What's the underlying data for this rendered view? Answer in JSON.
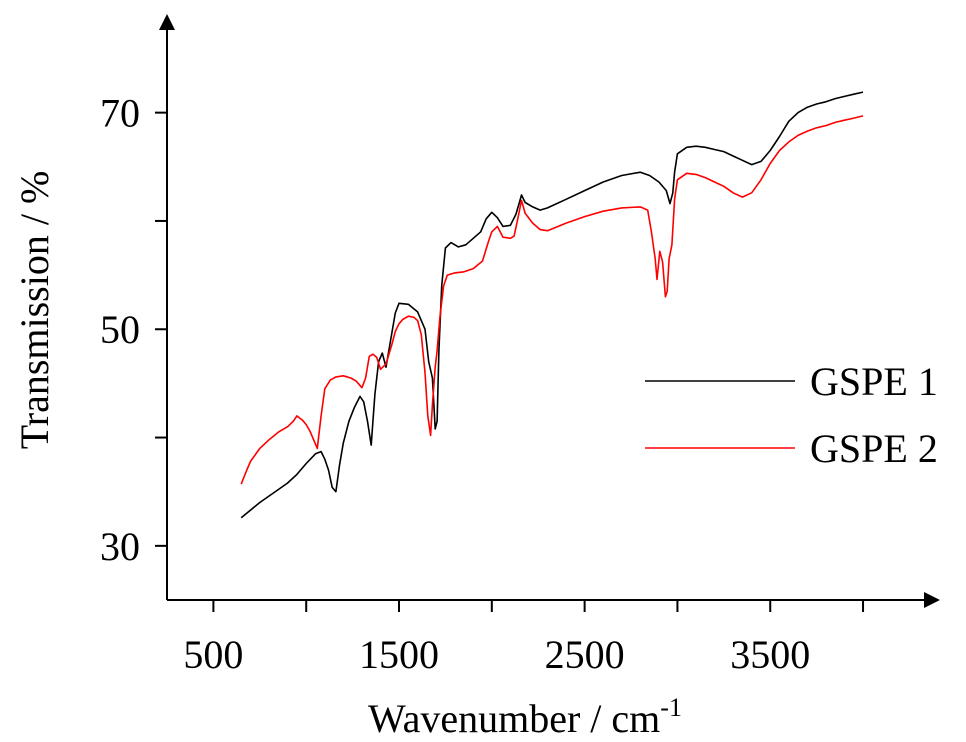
{
  "chart_data": {
    "type": "line",
    "title": "",
    "xlabel": "Wavenumber / cm",
    "xlabel_superscript": "-1",
    "ylabel": "Transmission / %",
    "xlim": [
      250,
      4350
    ],
    "ylim": [
      25,
      78
    ],
    "xticks": [
      500,
      1000,
      1500,
      2000,
      2500,
      3000,
      3500,
      4000
    ],
    "xtick_labels": [
      "500",
      "1500",
      "2500",
      "3500"
    ],
    "xtick_label_values": [
      500,
      1500,
      2500,
      3500
    ],
    "yticks": [
      30,
      40,
      50,
      60,
      70
    ],
    "ytick_labels": [
      "30",
      "50",
      "70"
    ],
    "ytick_label_values": [
      30,
      50,
      70
    ],
    "grid": false,
    "legend_position": "right",
    "series": [
      {
        "name": "GSPE 1",
        "color": "#000000",
        "points": [
          [
            650,
            32.6
          ],
          [
            700,
            33.3
          ],
          [
            750,
            34.0
          ],
          [
            800,
            34.6
          ],
          [
            850,
            35.2
          ],
          [
            900,
            35.8
          ],
          [
            950,
            36.6
          ],
          [
            1000,
            37.6
          ],
          [
            1050,
            38.5
          ],
          [
            1080,
            38.7
          ],
          [
            1100,
            38.0
          ],
          [
            1120,
            37.0
          ],
          [
            1140,
            35.4
          ],
          [
            1160,
            35.0
          ],
          [
            1180,
            37.5
          ],
          [
            1200,
            39.5
          ],
          [
            1230,
            41.5
          ],
          [
            1260,
            42.8
          ],
          [
            1290,
            43.8
          ],
          [
            1310,
            43.3
          ],
          [
            1330,
            41.5
          ],
          [
            1350,
            39.3
          ],
          [
            1370,
            44.0
          ],
          [
            1390,
            47.0
          ],
          [
            1410,
            47.8
          ],
          [
            1430,
            46.5
          ],
          [
            1450,
            48.5
          ],
          [
            1480,
            51.5
          ],
          [
            1500,
            52.4
          ],
          [
            1550,
            52.3
          ],
          [
            1600,
            51.6
          ],
          [
            1640,
            50.0
          ],
          [
            1660,
            47.0
          ],
          [
            1680,
            45.5
          ],
          [
            1695,
            40.8
          ],
          [
            1705,
            41.5
          ],
          [
            1715,
            48.0
          ],
          [
            1730,
            54.0
          ],
          [
            1750,
            57.5
          ],
          [
            1780,
            58.0
          ],
          [
            1820,
            57.6
          ],
          [
            1860,
            57.8
          ],
          [
            1900,
            58.4
          ],
          [
            1940,
            59.0
          ],
          [
            1970,
            60.2
          ],
          [
            2000,
            60.8
          ],
          [
            2030,
            60.3
          ],
          [
            2060,
            59.5
          ],
          [
            2100,
            59.6
          ],
          [
            2130,
            60.6
          ],
          [
            2150,
            61.8
          ],
          [
            2160,
            62.4
          ],
          [
            2180,
            61.7
          ],
          [
            2220,
            61.3
          ],
          [
            2260,
            61.0
          ],
          [
            2300,
            61.2
          ],
          [
            2400,
            62.0
          ],
          [
            2500,
            62.8
          ],
          [
            2600,
            63.6
          ],
          [
            2700,
            64.2
          ],
          [
            2800,
            64.5
          ],
          [
            2850,
            64.2
          ],
          [
            2900,
            63.6
          ],
          [
            2940,
            62.8
          ],
          [
            2960,
            61.6
          ],
          [
            2975,
            62.6
          ],
          [
            2985,
            64.5
          ],
          [
            3000,
            66.2
          ],
          [
            3050,
            66.8
          ],
          [
            3100,
            66.9
          ],
          [
            3150,
            66.8
          ],
          [
            3200,
            66.6
          ],
          [
            3250,
            66.4
          ],
          [
            3300,
            66.0
          ],
          [
            3350,
            65.6
          ],
          [
            3400,
            65.2
          ],
          [
            3450,
            65.5
          ],
          [
            3500,
            66.5
          ],
          [
            3550,
            67.8
          ],
          [
            3600,
            69.2
          ],
          [
            3650,
            70.0
          ],
          [
            3700,
            70.5
          ],
          [
            3750,
            70.8
          ],
          [
            3800,
            71.0
          ],
          [
            3850,
            71.3
          ],
          [
            3900,
            71.5
          ],
          [
            3950,
            71.7
          ],
          [
            4000,
            71.9
          ]
        ]
      },
      {
        "name": "GSPE 2",
        "color": "#ff0000",
        "points": [
          [
            650,
            35.7
          ],
          [
            680,
            37.0
          ],
          [
            700,
            37.8
          ],
          [
            750,
            39.0
          ],
          [
            800,
            39.8
          ],
          [
            850,
            40.5
          ],
          [
            900,
            41.0
          ],
          [
            930,
            41.5
          ],
          [
            950,
            42.0
          ],
          [
            980,
            41.6
          ],
          [
            1000,
            41.2
          ],
          [
            1020,
            40.6
          ],
          [
            1040,
            39.8
          ],
          [
            1060,
            39.0
          ],
          [
            1080,
            42.0
          ],
          [
            1100,
            44.5
          ],
          [
            1130,
            45.3
          ],
          [
            1160,
            45.6
          ],
          [
            1200,
            45.7
          ],
          [
            1240,
            45.5
          ],
          [
            1270,
            45.2
          ],
          [
            1300,
            44.6
          ],
          [
            1320,
            45.5
          ],
          [
            1340,
            47.5
          ],
          [
            1360,
            47.7
          ],
          [
            1380,
            47.4
          ],
          [
            1400,
            46.3
          ],
          [
            1430,
            46.8
          ],
          [
            1460,
            48.5
          ],
          [
            1480,
            49.8
          ],
          [
            1500,
            50.5
          ],
          [
            1520,
            50.9
          ],
          [
            1550,
            51.2
          ],
          [
            1580,
            51.1
          ],
          [
            1600,
            50.8
          ],
          [
            1620,
            49.5
          ],
          [
            1640,
            46.0
          ],
          [
            1655,
            42.0
          ],
          [
            1670,
            40.2
          ],
          [
            1680,
            43.0
          ],
          [
            1695,
            46.5
          ],
          [
            1705,
            48.0
          ],
          [
            1720,
            51.0
          ],
          [
            1740,
            54.0
          ],
          [
            1760,
            55.0
          ],
          [
            1800,
            55.2
          ],
          [
            1850,
            55.3
          ],
          [
            1900,
            55.6
          ],
          [
            1950,
            56.3
          ],
          [
            1980,
            58.0
          ],
          [
            2000,
            59.0
          ],
          [
            2030,
            59.5
          ],
          [
            2060,
            58.5
          ],
          [
            2100,
            58.4
          ],
          [
            2120,
            58.6
          ],
          [
            2140,
            60.2
          ],
          [
            2160,
            61.9
          ],
          [
            2180,
            60.7
          ],
          [
            2220,
            59.8
          ],
          [
            2260,
            59.2
          ],
          [
            2300,
            59.1
          ],
          [
            2400,
            59.8
          ],
          [
            2500,
            60.4
          ],
          [
            2600,
            60.9
          ],
          [
            2700,
            61.2
          ],
          [
            2800,
            61.3
          ],
          [
            2840,
            61.0
          ],
          [
            2860,
            59.0
          ],
          [
            2880,
            56.5
          ],
          [
            2890,
            54.6
          ],
          [
            2905,
            57.2
          ],
          [
            2920,
            56.2
          ],
          [
            2935,
            53.0
          ],
          [
            2945,
            53.5
          ],
          [
            2955,
            56.5
          ],
          [
            2970,
            57.8
          ],
          [
            2985,
            62.0
          ],
          [
            3000,
            63.8
          ],
          [
            3050,
            64.4
          ],
          [
            3100,
            64.3
          ],
          [
            3150,
            64.0
          ],
          [
            3200,
            63.6
          ],
          [
            3250,
            63.2
          ],
          [
            3300,
            62.6
          ],
          [
            3350,
            62.2
          ],
          [
            3400,
            62.6
          ],
          [
            3450,
            63.8
          ],
          [
            3500,
            65.3
          ],
          [
            3550,
            66.5
          ],
          [
            3600,
            67.3
          ],
          [
            3650,
            67.9
          ],
          [
            3700,
            68.3
          ],
          [
            3750,
            68.6
          ],
          [
            3800,
            68.8
          ],
          [
            3850,
            69.1
          ],
          [
            3900,
            69.3
          ],
          [
            3950,
            69.5
          ],
          [
            4000,
            69.7
          ]
        ]
      }
    ]
  }
}
